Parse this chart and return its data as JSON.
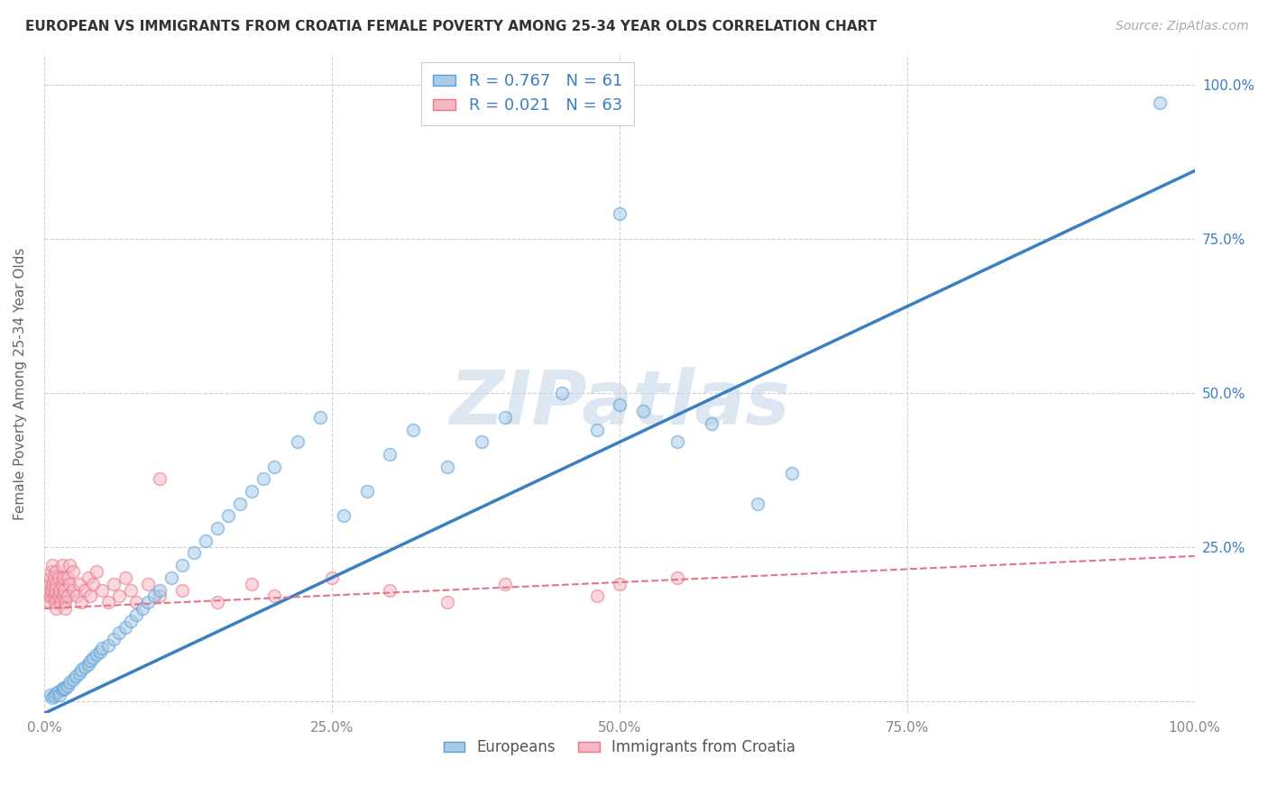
{
  "title": "EUROPEAN VS IMMIGRANTS FROM CROATIA FEMALE POVERTY AMONG 25-34 YEAR OLDS CORRELATION CHART",
  "source": "Source: ZipAtlas.com",
  "ylabel": "Female Poverty Among 25-34 Year Olds",
  "watermark": "ZIPatlas",
  "xlim": [
    0,
    1.0
  ],
  "ylim": [
    -0.02,
    1.05
  ],
  "xticks": [
    0.0,
    0.25,
    0.5,
    0.75,
    1.0
  ],
  "yticks": [
    0.0,
    0.25,
    0.5,
    0.75,
    1.0
  ],
  "xtick_labels": [
    "0.0%",
    "25.0%",
    "50.0%",
    "75.0%",
    "100.0%"
  ],
  "ytick_labels_left": [
    "",
    "",
    "",
    "",
    ""
  ],
  "ytick_labels_right": [
    "",
    "25.0%",
    "50.0%",
    "75.0%",
    "100.0%"
  ],
  "blue_R": 0.767,
  "blue_N": 61,
  "pink_R": 0.021,
  "pink_N": 63,
  "blue_color": "#a8cce8",
  "pink_color": "#f5b8c4",
  "blue_edge_color": "#5b9dd6",
  "pink_edge_color": "#e8758a",
  "blue_line_color": "#3a7fc1",
  "pink_line_color": "#e07585",
  "legend_label_blue": "Europeans",
  "legend_label_pink": "Immigrants from Croatia",
  "title_fontsize": 11,
  "source_fontsize": 10,
  "label_fontsize": 11,
  "tick_fontsize": 11,
  "watermark_fontsize": 60,
  "watermark_color": "#c5d8ea",
  "watermark_alpha": 0.6,
  "background_color": "#ffffff",
  "grid_color": "#d0d0d0",
  "scatter_size": 100,
  "scatter_alpha": 0.55,
  "blue_line_intercept": -0.02,
  "blue_line_slope": 0.88,
  "pink_line_intercept": 0.15,
  "pink_line_slope": 0.085,
  "blue_x": [
    0.005,
    0.007,
    0.008,
    0.01,
    0.012,
    0.013,
    0.015,
    0.016,
    0.018,
    0.02,
    0.022,
    0.025,
    0.027,
    0.03,
    0.032,
    0.035,
    0.038,
    0.04,
    0.042,
    0.045,
    0.048,
    0.05,
    0.055,
    0.06,
    0.065,
    0.07,
    0.075,
    0.08,
    0.085,
    0.09,
    0.095,
    0.1,
    0.11,
    0.12,
    0.13,
    0.14,
    0.15,
    0.16,
    0.17,
    0.18,
    0.19,
    0.2,
    0.22,
    0.24,
    0.26,
    0.28,
    0.3,
    0.32,
    0.35,
    0.38,
    0.4,
    0.45,
    0.48,
    0.5,
    0.52,
    0.55,
    0.58,
    0.62,
    0.65,
    0.97,
    0.5
  ],
  "blue_y": [
    0.01,
    0.005,
    0.008,
    0.012,
    0.015,
    0.01,
    0.018,
    0.022,
    0.02,
    0.025,
    0.03,
    0.035,
    0.04,
    0.045,
    0.05,
    0.055,
    0.06,
    0.065,
    0.07,
    0.075,
    0.08,
    0.085,
    0.09,
    0.1,
    0.11,
    0.12,
    0.13,
    0.14,
    0.15,
    0.16,
    0.17,
    0.18,
    0.2,
    0.22,
    0.24,
    0.26,
    0.28,
    0.3,
    0.32,
    0.34,
    0.36,
    0.38,
    0.42,
    0.46,
    0.3,
    0.34,
    0.4,
    0.44,
    0.38,
    0.42,
    0.46,
    0.5,
    0.44,
    0.48,
    0.47,
    0.42,
    0.45,
    0.32,
    0.37,
    0.97,
    0.79
  ],
  "pink_x": [
    0.002,
    0.003,
    0.004,
    0.004,
    0.005,
    0.005,
    0.006,
    0.006,
    0.007,
    0.007,
    0.008,
    0.008,
    0.009,
    0.009,
    0.01,
    0.01,
    0.01,
    0.012,
    0.012,
    0.013,
    0.014,
    0.015,
    0.015,
    0.016,
    0.016,
    0.017,
    0.018,
    0.018,
    0.02,
    0.02,
    0.022,
    0.022,
    0.025,
    0.025,
    0.028,
    0.03,
    0.032,
    0.035,
    0.038,
    0.04,
    0.042,
    0.045,
    0.05,
    0.055,
    0.06,
    0.065,
    0.07,
    0.075,
    0.08,
    0.09,
    0.1,
    0.12,
    0.15,
    0.18,
    0.2,
    0.25,
    0.3,
    0.35,
    0.4,
    0.48,
    0.5,
    0.55,
    0.1
  ],
  "pink_y": [
    0.17,
    0.18,
    0.16,
    0.19,
    0.17,
    0.2,
    0.18,
    0.21,
    0.19,
    0.22,
    0.2,
    0.17,
    0.18,
    0.16,
    0.15,
    0.19,
    0.21,
    0.17,
    0.2,
    0.18,
    0.16,
    0.19,
    0.22,
    0.17,
    0.2,
    0.18,
    0.16,
    0.15,
    0.17,
    0.2,
    0.19,
    0.22,
    0.18,
    0.21,
    0.17,
    0.19,
    0.16,
    0.18,
    0.2,
    0.17,
    0.19,
    0.21,
    0.18,
    0.16,
    0.19,
    0.17,
    0.2,
    0.18,
    0.16,
    0.19,
    0.17,
    0.18,
    0.16,
    0.19,
    0.17,
    0.2,
    0.18,
    0.16,
    0.19,
    0.17,
    0.19,
    0.2,
    0.36
  ]
}
